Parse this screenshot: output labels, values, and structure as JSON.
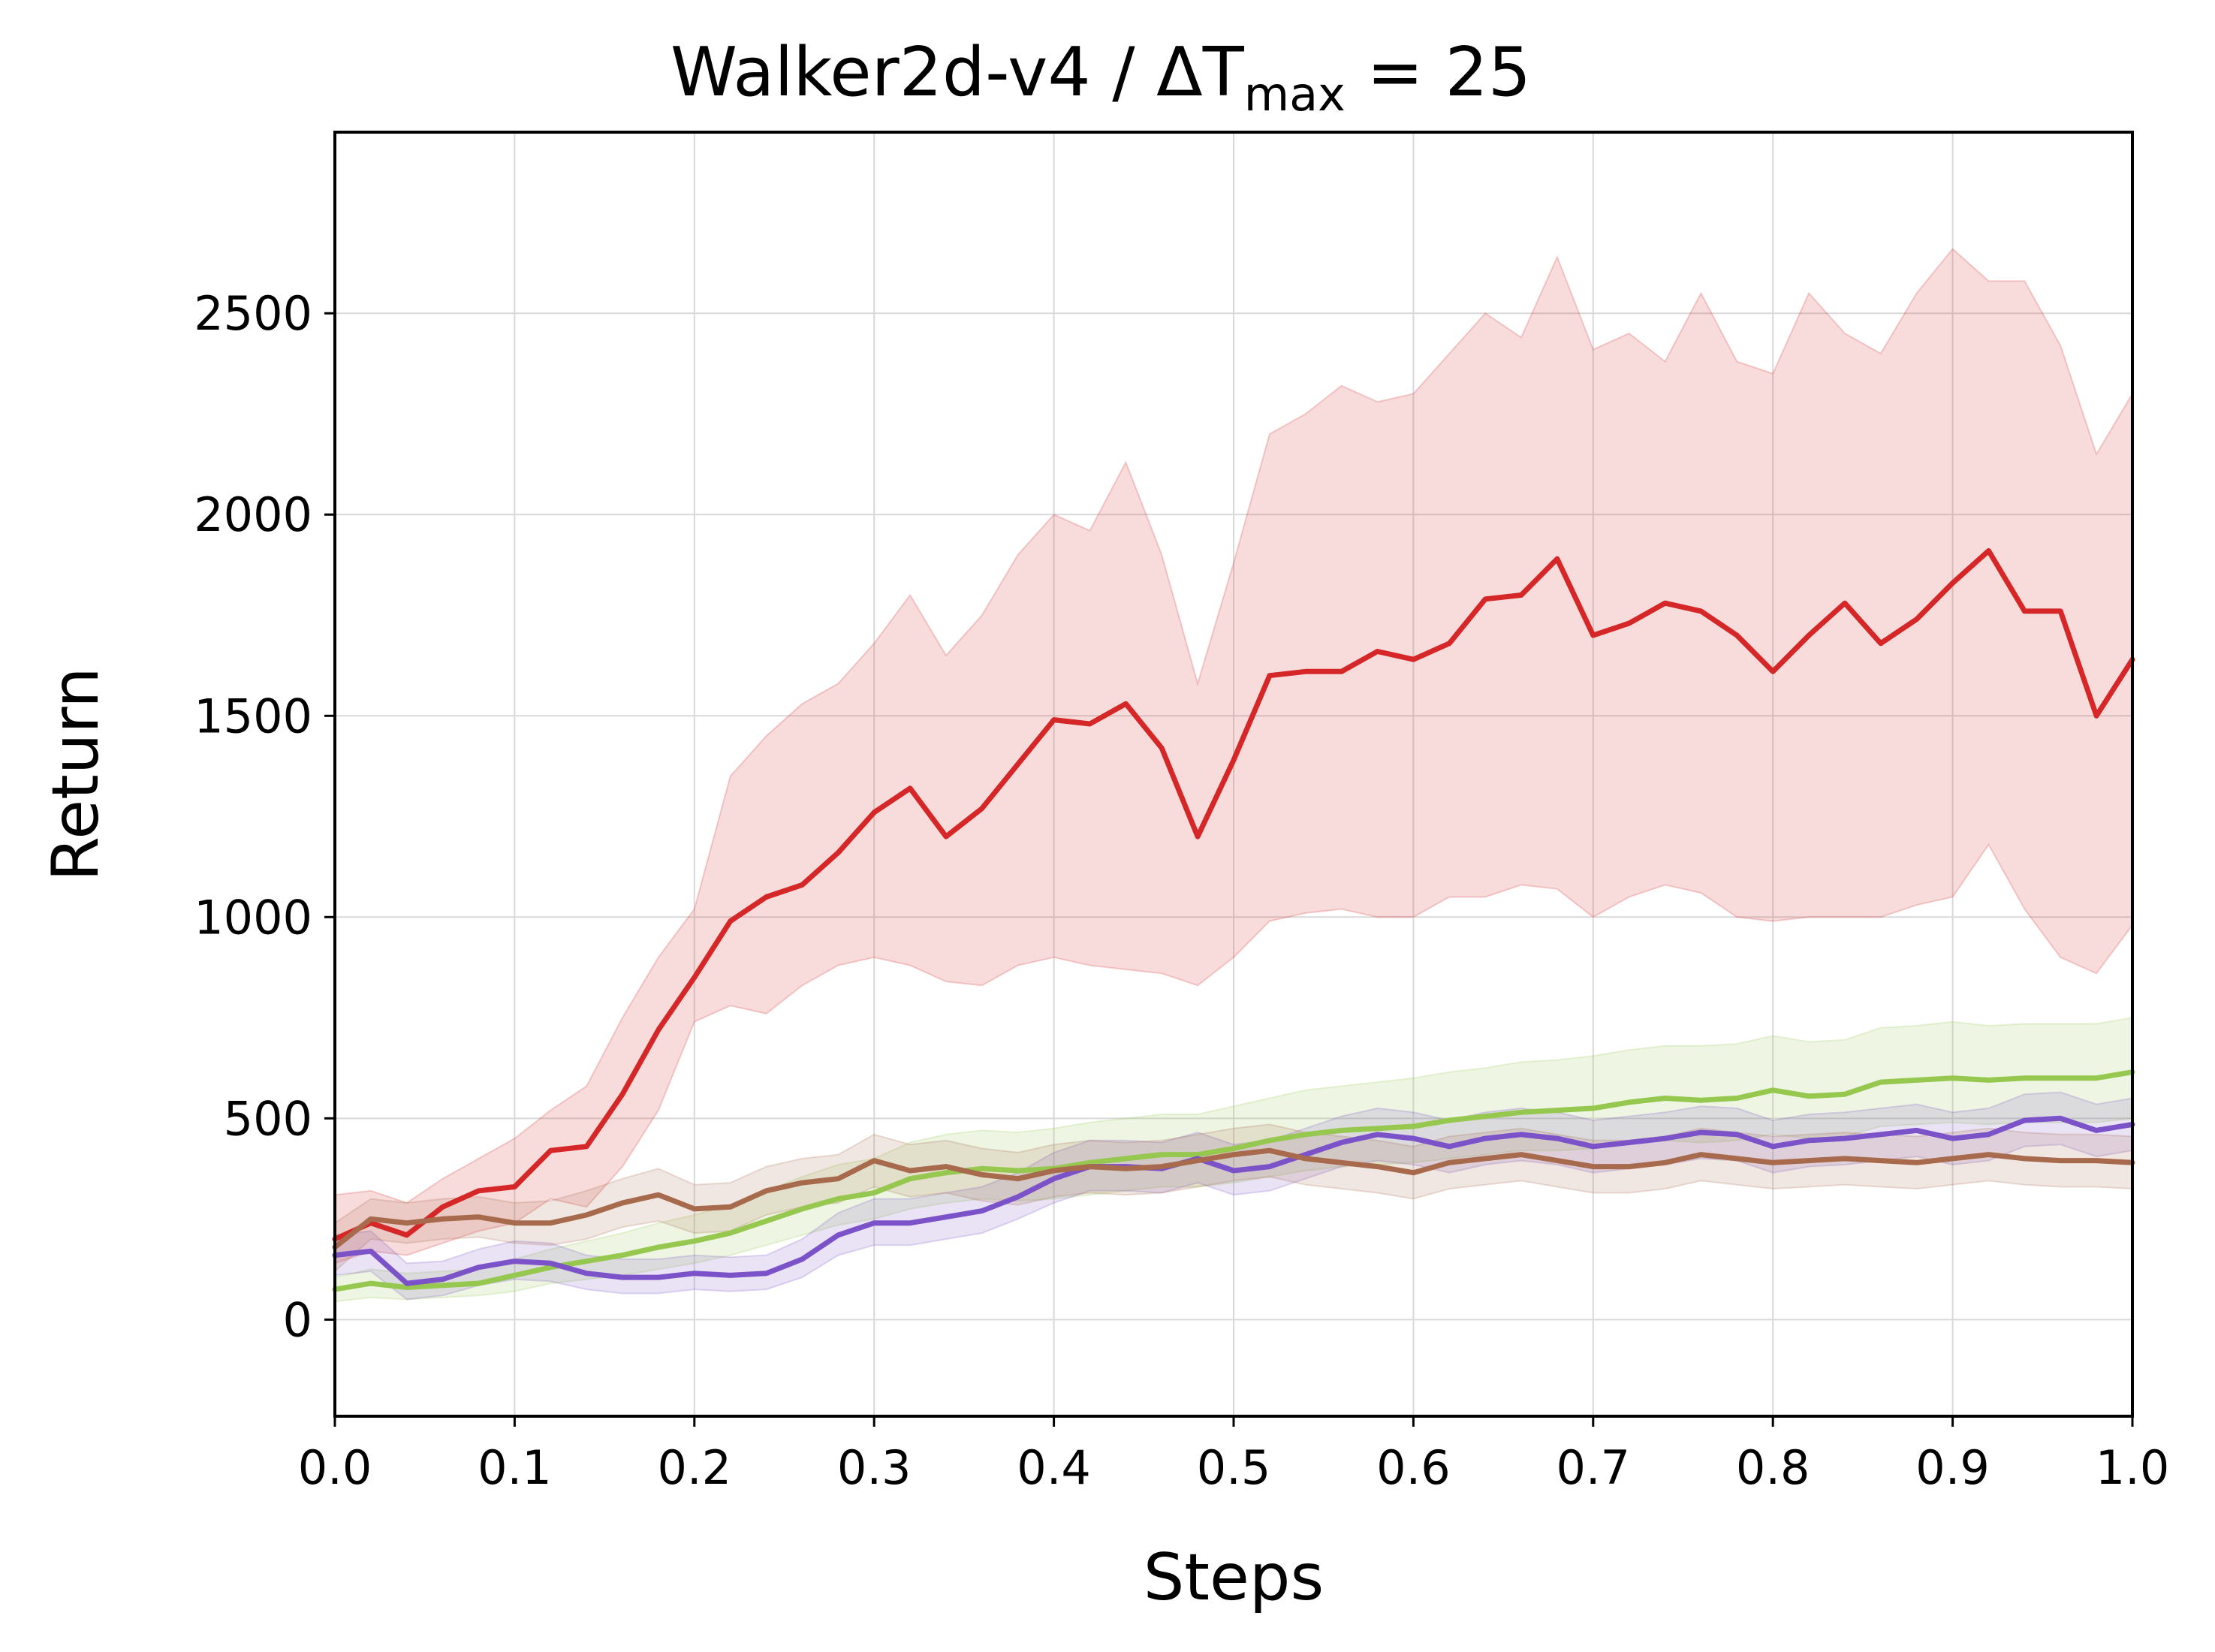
{
  "chart_data": {
    "type": "line",
    "title": {
      "main": "Walker2d-v4 / ΔT",
      "subscript": "max",
      "suffix": " = 25"
    },
    "xlabel": "Steps",
    "ylabel": "Return",
    "xlim": [
      0.0,
      1.0
    ],
    "ylim": [
      -240,
      2950
    ],
    "xticks": [
      0.0,
      0.1,
      0.2,
      0.3,
      0.4,
      0.5,
      0.6,
      0.7,
      0.8,
      0.9,
      1.0
    ],
    "xtick_labels": [
      "0.0",
      "0.1",
      "0.2",
      "0.3",
      "0.4",
      "0.5",
      "0.6",
      "0.7",
      "0.8",
      "0.9",
      "1.0"
    ],
    "yticks": [
      0,
      500,
      1000,
      1500,
      2000,
      2500
    ],
    "ytick_labels": [
      "0",
      "500",
      "1000",
      "1500",
      "2000",
      "2500"
    ],
    "grid": true,
    "legend": "none",
    "series": [
      {
        "color": "#d62728",
        "x": [
          0.0,
          0.02,
          0.04,
          0.06,
          0.08,
          0.1,
          0.12,
          0.14,
          0.16,
          0.18,
          0.2,
          0.22,
          0.24,
          0.26,
          0.28,
          0.3,
          0.32,
          0.34,
          0.36,
          0.38,
          0.4,
          0.42,
          0.44,
          0.46,
          0.48,
          0.5,
          0.52,
          0.54,
          0.56,
          0.58,
          0.6,
          0.62,
          0.64,
          0.66,
          0.68,
          0.7,
          0.72,
          0.74,
          0.76,
          0.78,
          0.8,
          0.82,
          0.84,
          0.86,
          0.88,
          0.9,
          0.92,
          0.94,
          0.96,
          0.98,
          1.0
        ],
        "y": [
          200,
          240,
          210,
          280,
          320,
          330,
          420,
          430,
          560,
          720,
          850,
          990,
          1050,
          1080,
          1160,
          1260,
          1320,
          1200,
          1270,
          1380,
          1490,
          1480,
          1530,
          1420,
          1200,
          1390,
          1600,
          1610,
          1610,
          1660,
          1640,
          1680,
          1790,
          1800,
          1890,
          1700,
          1730,
          1780,
          1760,
          1700,
          1610,
          1700,
          1780,
          1680,
          1740,
          1830,
          1910,
          1760,
          1760,
          1500,
          1640
        ],
        "lower": [
          140,
          170,
          160,
          190,
          220,
          240,
          300,
          280,
          380,
          520,
          740,
          780,
          760,
          830,
          880,
          900,
          880,
          840,
          830,
          880,
          900,
          880,
          870,
          860,
          830,
          900,
          990,
          1010,
          1020,
          1000,
          1000,
          1050,
          1050,
          1080,
          1070,
          1000,
          1050,
          1080,
          1060,
          1000,
          990,
          1000,
          1000,
          1000,
          1030,
          1050,
          1180,
          1020,
          900,
          860,
          980
        ],
        "upper": [
          310,
          320,
          290,
          350,
          400,
          450,
          520,
          580,
          750,
          900,
          1020,
          1350,
          1450,
          1530,
          1580,
          1680,
          1800,
          1650,
          1750,
          1900,
          2000,
          1960,
          2130,
          1900,
          1580,
          1880,
          2200,
          2250,
          2320,
          2280,
          2300,
          2400,
          2500,
          2440,
          2640,
          2410,
          2450,
          2380,
          2550,
          2380,
          2350,
          2550,
          2450,
          2400,
          2550,
          2660,
          2580,
          2580,
          2420,
          2150,
          2300
        ]
      },
      {
        "color": "#96c850",
        "x": [
          0.0,
          0.02,
          0.04,
          0.06,
          0.08,
          0.1,
          0.12,
          0.14,
          0.16,
          0.18,
          0.2,
          0.22,
          0.24,
          0.26,
          0.28,
          0.3,
          0.32,
          0.34,
          0.36,
          0.38,
          0.4,
          0.42,
          0.44,
          0.46,
          0.48,
          0.5,
          0.52,
          0.54,
          0.56,
          0.58,
          0.6,
          0.62,
          0.64,
          0.66,
          0.68,
          0.7,
          0.72,
          0.74,
          0.76,
          0.78,
          0.8,
          0.82,
          0.84,
          0.86,
          0.88,
          0.9,
          0.92,
          0.94,
          0.96,
          0.98,
          1.0
        ],
        "y": [
          75,
          90,
          80,
          85,
          90,
          110,
          130,
          145,
          160,
          180,
          195,
          215,
          245,
          275,
          300,
          315,
          350,
          365,
          375,
          370,
          375,
          390,
          400,
          410,
          410,
          425,
          445,
          460,
          470,
          475,
          480,
          495,
          505,
          515,
          520,
          525,
          540,
          550,
          545,
          550,
          570,
          555,
          560,
          590,
          595,
          600,
          595,
          600,
          600,
          600,
          615
        ],
        "lower": [
          45,
          55,
          50,
          55,
          60,
          70,
          90,
          100,
          110,
          125,
          140,
          160,
          185,
          210,
          235,
          250,
          275,
          290,
          300,
          295,
          300,
          310,
          320,
          330,
          330,
          340,
          355,
          370,
          380,
          385,
          390,
          400,
          410,
          420,
          420,
          425,
          440,
          445,
          440,
          445,
          460,
          450,
          455,
          480,
          485,
          490,
          485,
          490,
          490,
          490,
          500
        ],
        "upper": [
          105,
          125,
          115,
          120,
          125,
          150,
          175,
          195,
          215,
          240,
          260,
          285,
          320,
          355,
          385,
          400,
          440,
          460,
          470,
          465,
          475,
          490,
          500,
          510,
          510,
          530,
          550,
          570,
          580,
          590,
          600,
          615,
          625,
          640,
          645,
          655,
          670,
          680,
          680,
          685,
          705,
          690,
          695,
          725,
          730,
          740,
          730,
          735,
          735,
          735,
          750
        ]
      },
      {
        "color": "#7b52c8",
        "x": [
          0.0,
          0.02,
          0.04,
          0.06,
          0.08,
          0.1,
          0.12,
          0.14,
          0.16,
          0.18,
          0.2,
          0.22,
          0.24,
          0.26,
          0.28,
          0.3,
          0.32,
          0.34,
          0.36,
          0.38,
          0.4,
          0.42,
          0.44,
          0.46,
          0.48,
          0.5,
          0.52,
          0.54,
          0.56,
          0.58,
          0.6,
          0.62,
          0.64,
          0.66,
          0.68,
          0.7,
          0.72,
          0.74,
          0.76,
          0.78,
          0.8,
          0.82,
          0.84,
          0.86,
          0.88,
          0.9,
          0.92,
          0.94,
          0.96,
          0.98,
          1.0
        ],
        "y": [
          160,
          170,
          90,
          100,
          130,
          145,
          140,
          115,
          105,
          105,
          115,
          110,
          115,
          150,
          210,
          240,
          240,
          255,
          270,
          305,
          350,
          380,
          380,
          375,
          400,
          370,
          380,
          410,
          440,
          460,
          450,
          430,
          450,
          460,
          450,
          430,
          440,
          450,
          465,
          460,
          430,
          445,
          450,
          460,
          470,
          450,
          460,
          495,
          500,
          470,
          485
        ],
        "lower": [
          110,
          120,
          50,
          60,
          85,
          100,
          95,
          75,
          65,
          65,
          75,
          70,
          75,
          105,
          160,
          185,
          185,
          200,
          215,
          250,
          290,
          320,
          320,
          315,
          340,
          310,
          320,
          350,
          380,
          395,
          385,
          365,
          385,
          395,
          385,
          365,
          375,
          385,
          400,
          395,
          365,
          380,
          385,
          395,
          405,
          385,
          395,
          430,
          435,
          405,
          420
        ],
        "upper": [
          210,
          220,
          140,
          145,
          175,
          195,
          190,
          160,
          150,
          150,
          160,
          155,
          160,
          200,
          265,
          300,
          300,
          315,
          330,
          365,
          415,
          445,
          445,
          440,
          465,
          435,
          445,
          475,
          505,
          525,
          515,
          495,
          515,
          525,
          515,
          495,
          505,
          515,
          530,
          525,
          495,
          510,
          515,
          525,
          535,
          515,
          525,
          560,
          565,
          535,
          550
        ]
      },
      {
        "color": "#a86a4c",
        "x": [
          0.0,
          0.02,
          0.04,
          0.06,
          0.08,
          0.1,
          0.12,
          0.14,
          0.16,
          0.18,
          0.2,
          0.22,
          0.24,
          0.26,
          0.28,
          0.3,
          0.32,
          0.34,
          0.36,
          0.38,
          0.4,
          0.42,
          0.44,
          0.46,
          0.48,
          0.5,
          0.52,
          0.54,
          0.56,
          0.58,
          0.6,
          0.62,
          0.64,
          0.66,
          0.68,
          0.7,
          0.72,
          0.74,
          0.76,
          0.78,
          0.8,
          0.82,
          0.84,
          0.86,
          0.88,
          0.9,
          0.92,
          0.94,
          0.96,
          0.98,
          1.0
        ],
        "y": [
          180,
          250,
          240,
          250,
          255,
          240,
          240,
          260,
          290,
          310,
          275,
          280,
          320,
          340,
          350,
          395,
          370,
          380,
          360,
          350,
          370,
          380,
          375,
          380,
          395,
          410,
          420,
          400,
          390,
          380,
          365,
          390,
          400,
          410,
          395,
          380,
          380,
          390,
          410,
          400,
          390,
          395,
          400,
          395,
          390,
          400,
          410,
          400,
          395,
          395,
          390
        ],
        "lower": [
          120,
          200,
          190,
          200,
          205,
          190,
          185,
          200,
          230,
          245,
          215,
          220,
          260,
          280,
          290,
          330,
          305,
          315,
          295,
          285,
          305,
          315,
          310,
          315,
          330,
          345,
          355,
          335,
          325,
          315,
          300,
          325,
          335,
          345,
          330,
          315,
          315,
          325,
          345,
          335,
          325,
          330,
          335,
          330,
          325,
          335,
          345,
          335,
          330,
          330,
          325
        ],
        "upper": [
          240,
          300,
          290,
          300,
          305,
          290,
          295,
          320,
          350,
          375,
          335,
          340,
          380,
          400,
          410,
          460,
          435,
          445,
          425,
          415,
          435,
          445,
          440,
          445,
          460,
          475,
          485,
          465,
          455,
          445,
          430,
          455,
          465,
          475,
          460,
          445,
          445,
          455,
          475,
          465,
          455,
          460,
          465,
          460,
          455,
          465,
          475,
          465,
          460,
          460,
          455
        ]
      }
    ]
  }
}
